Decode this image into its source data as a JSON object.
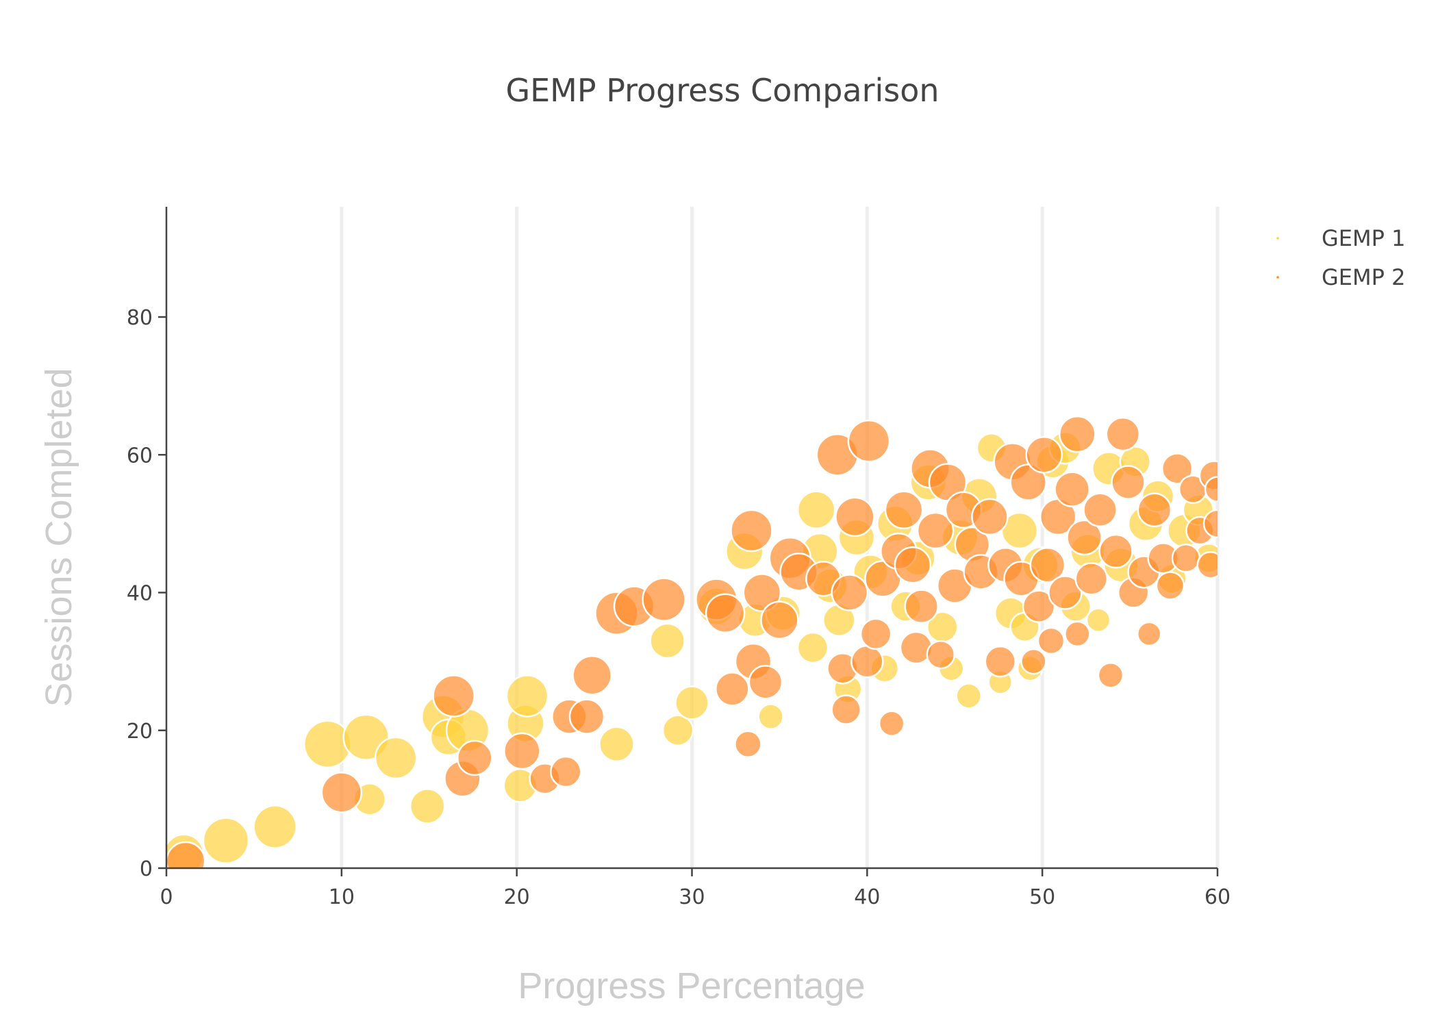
{
  "chart_data": {
    "type": "scatter",
    "title": "GEMP Progress Comparison",
    "xlabel": "Progress Percentage",
    "ylabel": "Sessions Completed",
    "xlim": [
      0,
      60
    ],
    "ylim": [
      0,
      96
    ],
    "x_ticks": [
      0,
      10,
      20,
      30,
      40,
      50,
      60
    ],
    "y_ticks": [
      0,
      20,
      40,
      60,
      80
    ],
    "grid": "vertical",
    "legend_position": "top-right",
    "marker_style": "bubble, semi-transparent, white outline",
    "series": [
      {
        "name": "GEMP 1",
        "color": "#FFD23F",
        "points": [
          {
            "x": 1.0,
            "y": 2,
            "s": 29
          },
          {
            "x": 3.4,
            "y": 4,
            "s": 33
          },
          {
            "x": 6.2,
            "y": 6,
            "s": 31
          },
          {
            "x": 9.2,
            "y": 18,
            "s": 34
          },
          {
            "x": 11.4,
            "y": 19,
            "s": 33
          },
          {
            "x": 11.6,
            "y": 10,
            "s": 23
          },
          {
            "x": 13.1,
            "y": 16,
            "s": 30
          },
          {
            "x": 14.9,
            "y": 9,
            "s": 25
          },
          {
            "x": 15.8,
            "y": 22,
            "s": 31
          },
          {
            "x": 16.1,
            "y": 19,
            "s": 26
          },
          {
            "x": 17.2,
            "y": 20,
            "s": 31
          },
          {
            "x": 20.2,
            "y": 12,
            "s": 24
          },
          {
            "x": 20.5,
            "y": 21,
            "s": 27
          },
          {
            "x": 20.6,
            "y": 25,
            "s": 30
          },
          {
            "x": 25.7,
            "y": 18,
            "s": 25
          },
          {
            "x": 28.6,
            "y": 33,
            "s": 25
          },
          {
            "x": 29.2,
            "y": 20,
            "s": 22
          },
          {
            "x": 30.0,
            "y": 24,
            "s": 24
          },
          {
            "x": 31.4,
            "y": 38,
            "s": 27
          },
          {
            "x": 33.0,
            "y": 46,
            "s": 27
          },
          {
            "x": 33.6,
            "y": 36,
            "s": 24
          },
          {
            "x": 34.5,
            "y": 22,
            "s": 18
          },
          {
            "x": 35.2,
            "y": 37,
            "s": 25
          },
          {
            "x": 36.9,
            "y": 32,
            "s": 22
          },
          {
            "x": 37.1,
            "y": 52,
            "s": 27
          },
          {
            "x": 37.3,
            "y": 46,
            "s": 26
          },
          {
            "x": 37.9,
            "y": 41,
            "s": 25
          },
          {
            "x": 38.4,
            "y": 36,
            "s": 23
          },
          {
            "x": 38.9,
            "y": 26,
            "s": 20
          },
          {
            "x": 39.4,
            "y": 48,
            "s": 26
          },
          {
            "x": 40.2,
            "y": 43,
            "s": 25
          },
          {
            "x": 41.0,
            "y": 29,
            "s": 20
          },
          {
            "x": 41.6,
            "y": 50,
            "s": 26
          },
          {
            "x": 42.2,
            "y": 38,
            "s": 22
          },
          {
            "x": 42.9,
            "y": 45,
            "s": 25
          },
          {
            "x": 43.5,
            "y": 56,
            "s": 26
          },
          {
            "x": 44.3,
            "y": 35,
            "s": 22
          },
          {
            "x": 44.8,
            "y": 29,
            "s": 18
          },
          {
            "x": 45.3,
            "y": 48,
            "s": 26
          },
          {
            "x": 45.8,
            "y": 25,
            "s": 18
          },
          {
            "x": 46.4,
            "y": 54,
            "s": 26
          },
          {
            "x": 47.1,
            "y": 61,
            "s": 21
          },
          {
            "x": 47.6,
            "y": 27,
            "s": 17
          },
          {
            "x": 48.2,
            "y": 37,
            "s": 23
          },
          {
            "x": 48.7,
            "y": 49,
            "s": 26
          },
          {
            "x": 49.0,
            "y": 35,
            "s": 21
          },
          {
            "x": 49.3,
            "y": 29,
            "s": 18
          },
          {
            "x": 49.9,
            "y": 44,
            "s": 26
          },
          {
            "x": 50.6,
            "y": 59,
            "s": 24
          },
          {
            "x": 51.3,
            "y": 61,
            "s": 23
          },
          {
            "x": 51.9,
            "y": 38,
            "s": 22
          },
          {
            "x": 52.6,
            "y": 46,
            "s": 25
          },
          {
            "x": 53.2,
            "y": 36,
            "s": 17
          },
          {
            "x": 53.8,
            "y": 58,
            "s": 24
          },
          {
            "x": 54.5,
            "y": 44,
            "s": 25
          },
          {
            "x": 55.3,
            "y": 59,
            "s": 22
          },
          {
            "x": 55.9,
            "y": 50,
            "s": 25
          },
          {
            "x": 56.6,
            "y": 54,
            "s": 23
          },
          {
            "x": 57.4,
            "y": 42,
            "s": 21
          },
          {
            "x": 58.1,
            "y": 49,
            "s": 24
          },
          {
            "x": 58.9,
            "y": 52,
            "s": 22
          },
          {
            "x": 59.5,
            "y": 45,
            "s": 21
          }
        ]
      },
      {
        "name": "GEMP 2",
        "color": "#FF8C2E",
        "points": [
          {
            "x": 1.1,
            "y": 1,
            "s": 28
          },
          {
            "x": 10.0,
            "y": 11,
            "s": 29
          },
          {
            "x": 16.4,
            "y": 25,
            "s": 30
          },
          {
            "x": 16.9,
            "y": 13,
            "s": 26
          },
          {
            "x": 17.6,
            "y": 16,
            "s": 25
          },
          {
            "x": 20.3,
            "y": 17,
            "s": 26
          },
          {
            "x": 21.6,
            "y": 13,
            "s": 22
          },
          {
            "x": 22.8,
            "y": 14,
            "s": 22
          },
          {
            "x": 23.0,
            "y": 22,
            "s": 25
          },
          {
            "x": 24.0,
            "y": 22,
            "s": 25
          },
          {
            "x": 24.3,
            "y": 28,
            "s": 28
          },
          {
            "x": 25.7,
            "y": 37,
            "s": 31
          },
          {
            "x": 26.7,
            "y": 38,
            "s": 29
          },
          {
            "x": 28.4,
            "y": 39,
            "s": 31
          },
          {
            "x": 31.4,
            "y": 39,
            "s": 30
          },
          {
            "x": 31.9,
            "y": 37,
            "s": 28
          },
          {
            "x": 32.3,
            "y": 26,
            "s": 24
          },
          {
            "x": 33.2,
            "y": 18,
            "s": 19
          },
          {
            "x": 33.4,
            "y": 49,
            "s": 30
          },
          {
            "x": 33.5,
            "y": 30,
            "s": 26
          },
          {
            "x": 34.0,
            "y": 40,
            "s": 27
          },
          {
            "x": 34.2,
            "y": 27,
            "s": 24
          },
          {
            "x": 35.0,
            "y": 36,
            "s": 27
          },
          {
            "x": 35.6,
            "y": 45,
            "s": 30
          },
          {
            "x": 36.1,
            "y": 43,
            "s": 27
          },
          {
            "x": 37.5,
            "y": 42,
            "s": 25
          },
          {
            "x": 38.3,
            "y": 60,
            "s": 30
          },
          {
            "x": 38.6,
            "y": 29,
            "s": 22
          },
          {
            "x": 38.8,
            "y": 23,
            "s": 21
          },
          {
            "x": 39.0,
            "y": 40,
            "s": 26
          },
          {
            "x": 39.3,
            "y": 51,
            "s": 28
          },
          {
            "x": 40.0,
            "y": 30,
            "s": 23
          },
          {
            "x": 40.1,
            "y": 62,
            "s": 30
          },
          {
            "x": 40.5,
            "y": 34,
            "s": 22
          },
          {
            "x": 40.9,
            "y": 42,
            "s": 26
          },
          {
            "x": 41.4,
            "y": 21,
            "s": 18
          },
          {
            "x": 41.8,
            "y": 46,
            "s": 26
          },
          {
            "x": 42.1,
            "y": 52,
            "s": 27
          },
          {
            "x": 42.6,
            "y": 44,
            "s": 26
          },
          {
            "x": 42.8,
            "y": 32,
            "s": 23
          },
          {
            "x": 43.1,
            "y": 38,
            "s": 24
          },
          {
            "x": 43.6,
            "y": 58,
            "s": 28
          },
          {
            "x": 43.9,
            "y": 49,
            "s": 26
          },
          {
            "x": 44.2,
            "y": 31,
            "s": 20
          },
          {
            "x": 44.6,
            "y": 56,
            "s": 27
          },
          {
            "x": 45.0,
            "y": 41,
            "s": 25
          },
          {
            "x": 45.5,
            "y": 52,
            "s": 26
          },
          {
            "x": 46.0,
            "y": 47,
            "s": 25
          },
          {
            "x": 46.5,
            "y": 43,
            "s": 25
          },
          {
            "x": 47.0,
            "y": 51,
            "s": 26
          },
          {
            "x": 47.6,
            "y": 30,
            "s": 22
          },
          {
            "x": 47.9,
            "y": 44,
            "s": 25
          },
          {
            "x": 48.3,
            "y": 59,
            "s": 27
          },
          {
            "x": 48.8,
            "y": 42,
            "s": 25
          },
          {
            "x": 49.2,
            "y": 56,
            "s": 26
          },
          {
            "x": 49.5,
            "y": 30,
            "s": 18
          },
          {
            "x": 49.8,
            "y": 38,
            "s": 23
          },
          {
            "x": 50.1,
            "y": 60,
            "s": 26
          },
          {
            "x": 50.3,
            "y": 44,
            "s": 25
          },
          {
            "x": 50.5,
            "y": 33,
            "s": 19
          },
          {
            "x": 50.9,
            "y": 51,
            "s": 26
          },
          {
            "x": 51.3,
            "y": 40,
            "s": 24
          },
          {
            "x": 51.7,
            "y": 55,
            "s": 25
          },
          {
            "x": 52.0,
            "y": 63,
            "s": 26
          },
          {
            "x": 52.0,
            "y": 34,
            "s": 18
          },
          {
            "x": 52.4,
            "y": 48,
            "s": 25
          },
          {
            "x": 52.8,
            "y": 42,
            "s": 23
          },
          {
            "x": 53.3,
            "y": 52,
            "s": 24
          },
          {
            "x": 53.9,
            "y": 28,
            "s": 18
          },
          {
            "x": 54.2,
            "y": 46,
            "s": 24
          },
          {
            "x": 54.6,
            "y": 63,
            "s": 24
          },
          {
            "x": 54.9,
            "y": 56,
            "s": 24
          },
          {
            "x": 55.2,
            "y": 40,
            "s": 22
          },
          {
            "x": 55.8,
            "y": 43,
            "s": 23
          },
          {
            "x": 56.1,
            "y": 34,
            "s": 17
          },
          {
            "x": 56.4,
            "y": 52,
            "s": 24
          },
          {
            "x": 56.9,
            "y": 45,
            "s": 22
          },
          {
            "x": 57.3,
            "y": 41,
            "s": 20
          },
          {
            "x": 57.7,
            "y": 58,
            "s": 22
          },
          {
            "x": 58.2,
            "y": 45,
            "s": 20
          },
          {
            "x": 58.6,
            "y": 55,
            "s": 20
          },
          {
            "x": 59.0,
            "y": 49,
            "s": 20
          },
          {
            "x": 59.6,
            "y": 44,
            "s": 19
          },
          {
            "x": 59.8,
            "y": 57,
            "s": 21
          },
          {
            "x": 60.0,
            "y": 50,
            "s": 20
          },
          {
            "x": 60.0,
            "y": 55,
            "s": 18
          }
        ]
      }
    ]
  }
}
